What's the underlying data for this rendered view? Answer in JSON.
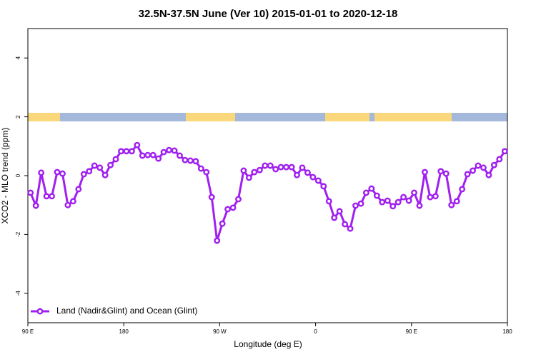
{
  "chart_data": {
    "type": "line",
    "title": "32.5N-37.5N June (Ver 10)   2015-01-01 to 2020-12-18",
    "x_label": "Longitude (deg E)",
    "y_label": "XCO2 - MLO trend (ppm)",
    "x": [
      92.5,
      97.5,
      102.5,
      107.5,
      112.5,
      117.5,
      122.5,
      127.5,
      132.5,
      137.5,
      142.5,
      147.5,
      152.5,
      157.5,
      162.5,
      167.5,
      172.5,
      177.5,
      182.5,
      187.5,
      192.5,
      197.5,
      202.5,
      207.5,
      212.5,
      217.5,
      222.5,
      227.5,
      232.5,
      237.5,
      242.5,
      247.5,
      252.5,
      257.5,
      262.5,
      267.5,
      272.5,
      277.5,
      282.5,
      287.5,
      292.5,
      297.5,
      302.5,
      307.5,
      312.5,
      317.5,
      322.5,
      327.5,
      332.5,
      337.5,
      342.5,
      347.5,
      352.5,
      357.5,
      362.5,
      367.5,
      372.5,
      377.5,
      382.5,
      387.5,
      392.5,
      397.5,
      402.5,
      407.5,
      412.5,
      417.5,
      422.5,
      427.5,
      432.5,
      437.5,
      442.5,
      447.5,
      452.5,
      457.5,
      462.5,
      467.5,
      472.5,
      477.5,
      482.5,
      487.5,
      492.5,
      497.5,
      502.5,
      507.5,
      512.5,
      517.5,
      522.5,
      527.5,
      532.5,
      537.5
    ],
    "series": [
      {
        "name": "Land (Nadir&Glint) and Ocean (Glint)",
        "color": "#a020f0",
        "values": [
          -0.58,
          -1.02,
          0.1,
          -0.7,
          -0.7,
          0.12,
          0.07,
          -1.0,
          -0.87,
          -0.46,
          0.05,
          0.15,
          0.34,
          0.27,
          0.02,
          0.36,
          0.56,
          0.83,
          0.83,
          0.83,
          1.04,
          0.68,
          0.7,
          0.7,
          0.58,
          0.8,
          0.87,
          0.85,
          0.68,
          0.53,
          0.51,
          0.49,
          0.24,
          0.12,
          -0.73,
          -2.21,
          -1.63,
          -1.14,
          -1.09,
          -0.8,
          0.17,
          -0.07,
          0.12,
          0.19,
          0.34,
          0.34,
          0.22,
          0.29,
          0.29,
          0.29,
          0.02,
          0.27,
          0.1,
          -0.05,
          -0.17,
          -0.36,
          -0.87,
          -1.43,
          -1.21,
          -1.65,
          -1.8,
          -1.02,
          -0.95,
          -0.58,
          -0.44,
          -0.68,
          -0.9,
          -0.85,
          -1.04,
          -0.9,
          -0.73,
          -0.85,
          -0.58,
          -1.02,
          0.12,
          -0.73,
          -0.7,
          0.15,
          0.07,
          -1.0,
          -0.87,
          -0.46,
          0.05,
          0.17,
          0.34,
          0.27,
          0.02,
          0.36,
          0.56,
          0.83
        ]
      }
    ],
    "xlim": [
      90,
      540
    ],
    "xticks": [
      {
        "value": 90,
        "label": "90 E"
      },
      180,
      {
        "value": 270,
        "label": "90 W"
      },
      {
        "value": 360,
        "label": "0"
      },
      {
        "value": 450,
        "label": "90 E"
      },
      {
        "value": 540,
        "label": "180"
      }
    ],
    "ylim": [
      -5,
      5
    ],
    "yticks": [
      -4,
      -2,
      0,
      2,
      4
    ],
    "legend": "bottom left"
  }
}
